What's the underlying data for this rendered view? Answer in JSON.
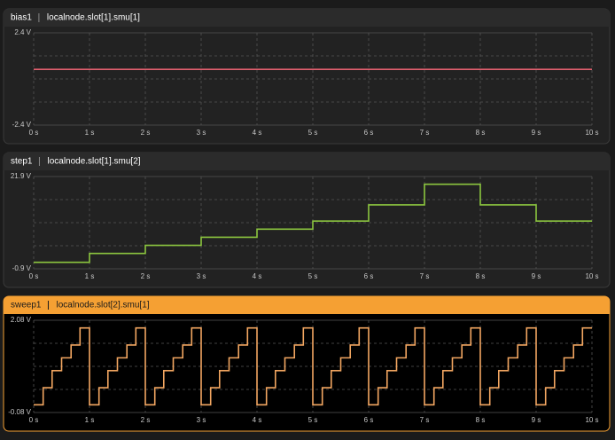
{
  "chart_data": [
    {
      "type": "line",
      "title": "bias1",
      "subtitle": "localnode.slot[1].smu[1]",
      "header_color": "#2b2b2b",
      "plot_color": "#222222",
      "border_color": "#3a3a3a",
      "grid": true,
      "xlim": [
        0,
        10
      ],
      "xticks": [
        {
          "value": 0,
          "label": "0 s"
        },
        {
          "value": 1,
          "label": "1 s"
        },
        {
          "value": 2,
          "label": "2 s"
        },
        {
          "value": 3,
          "label": "3 s"
        },
        {
          "value": 4,
          "label": "4 s"
        },
        {
          "value": 5,
          "label": "5 s"
        },
        {
          "value": 6,
          "label": "6 s"
        },
        {
          "value": 7,
          "label": "7 s"
        },
        {
          "value": 8,
          "label": "8 s"
        },
        {
          "value": 9,
          "label": "9 s"
        },
        {
          "value": 10,
          "label": "10 s"
        }
      ],
      "ylim": [
        -2.4,
        2.4
      ],
      "yticks": [
        {
          "value": -2.4,
          "label": "-2.4 V"
        },
        {
          "value": 2.4,
          "label": "2.4 V"
        }
      ],
      "series": [
        {
          "color": "#e0606e",
          "x": [
            0,
            10
          ],
          "values": [
            0.5,
            0.5
          ]
        }
      ]
    },
    {
      "type": "line",
      "title": "step1",
      "subtitle": "localnode.slot[1].smu[2]",
      "header_color": "#2b2b2b",
      "plot_color": "#222222",
      "border_color": "#3a3a3a",
      "grid": true,
      "xlim": [
        0,
        10
      ],
      "xticks": [
        {
          "value": 0,
          "label": "0 s"
        },
        {
          "value": 1,
          "label": "1 s"
        },
        {
          "value": 2,
          "label": "2 s"
        },
        {
          "value": 3,
          "label": "3 s"
        },
        {
          "value": 4,
          "label": "4 s"
        },
        {
          "value": 5,
          "label": "5 s"
        },
        {
          "value": 6,
          "label": "6 s"
        },
        {
          "value": 7,
          "label": "7 s"
        },
        {
          "value": 8,
          "label": "8 s"
        },
        {
          "value": 9,
          "label": "9 s"
        },
        {
          "value": 10,
          "label": "10 s"
        }
      ],
      "ylim": [
        -0.9,
        21.9
      ],
      "yticks": [
        {
          "value": -0.9,
          "label": "-0.9 V"
        },
        {
          "value": 21.9,
          "label": "21.9 V"
        }
      ],
      "series": [
        {
          "color": "#8cc63f",
          "x": [
            0,
            1,
            1,
            2,
            2,
            3,
            3,
            4,
            4,
            5,
            5,
            6,
            6,
            7,
            7,
            8,
            8,
            9,
            9,
            10
          ],
          "values": [
            0.7,
            0.7,
            2.9,
            2.9,
            4.9,
            4.9,
            6.9,
            6.9,
            8.9,
            8.9,
            10.9,
            10.9,
            14.9,
            14.9,
            20,
            20,
            14.9,
            14.9,
            10.9,
            10.9
          ]
        }
      ]
    },
    {
      "type": "line",
      "title": "sweep1",
      "subtitle": "localnode.slot[2].smu[1]",
      "header_color": "#f5a033",
      "plot_color": "#000000",
      "border_color": "#f5a033",
      "grid": true,
      "xlim": [
        0,
        10
      ],
      "xticks": [
        {
          "value": 0,
          "label": "0 s"
        },
        {
          "value": 1,
          "label": "1 s"
        },
        {
          "value": 2,
          "label": "2 s"
        },
        {
          "value": 3,
          "label": "3 s"
        },
        {
          "value": 4,
          "label": "4 s"
        },
        {
          "value": 5,
          "label": "5 s"
        },
        {
          "value": 6,
          "label": "6 s"
        },
        {
          "value": 7,
          "label": "7 s"
        },
        {
          "value": 8,
          "label": "8 s"
        },
        {
          "value": 9,
          "label": "9 s"
        },
        {
          "value": 10,
          "label": "10 s"
        }
      ],
      "ylim": [
        -0.08,
        2.08
      ],
      "yticks": [
        {
          "value": -0.08,
          "label": "-0.08 V"
        },
        {
          "value": 2.08,
          "label": "2.08 V"
        }
      ],
      "series": [
        {
          "color": "#f2a661",
          "x": [
            0,
            0.17,
            0.17,
            0.33,
            0.33,
            0.5,
            0.5,
            0.67,
            0.67,
            0.83,
            0.83,
            1,
            1,
            1.17,
            1.17,
            1.33,
            1.33,
            1.5,
            1.5,
            1.67,
            1.67,
            1.83,
            1.83,
            2,
            2,
            2.17,
            2.17,
            2.33,
            2.33,
            2.5,
            2.5,
            2.67,
            2.67,
            2.83,
            2.83,
            3,
            3,
            3.17,
            3.17,
            3.33,
            3.33,
            3.5,
            3.5,
            3.67,
            3.67,
            3.83,
            3.83,
            4,
            4,
            4.17,
            4.17,
            4.33,
            4.33,
            4.5,
            4.5,
            4.67,
            4.67,
            4.83,
            4.83,
            5,
            5,
            5.17,
            5.17,
            5.33,
            5.33,
            5.5,
            5.5,
            5.67,
            5.67,
            5.83,
            5.83,
            6,
            6,
            6.17,
            6.17,
            6.33,
            6.33,
            6.5,
            6.5,
            6.67,
            6.67,
            6.83,
            6.83,
            7,
            7,
            7.17,
            7.17,
            7.33,
            7.33,
            7.5,
            7.5,
            7.67,
            7.67,
            7.83,
            7.83,
            8,
            8,
            8.17,
            8.17,
            8.33,
            8.33,
            8.5,
            8.5,
            8.67,
            8.67,
            8.83,
            8.83,
            9,
            9,
            9.17,
            9.17,
            9.33,
            9.33,
            9.5,
            9.5,
            9.67,
            9.67,
            9.83,
            9.83,
            10
          ],
          "values": [
            0.1,
            0.1,
            0.5,
            0.5,
            0.9,
            0.9,
            1.2,
            1.2,
            1.5,
            1.5,
            1.9,
            1.9,
            0.1,
            0.1,
            0.5,
            0.5,
            0.9,
            0.9,
            1.2,
            1.2,
            1.5,
            1.5,
            1.9,
            1.9,
            0.1,
            0.1,
            0.5,
            0.5,
            0.9,
            0.9,
            1.2,
            1.2,
            1.5,
            1.5,
            1.9,
            1.9,
            0.1,
            0.1,
            0.5,
            0.5,
            0.9,
            0.9,
            1.2,
            1.2,
            1.5,
            1.5,
            1.9,
            1.9,
            0.1,
            0.1,
            0.5,
            0.5,
            0.9,
            0.9,
            1.2,
            1.2,
            1.5,
            1.5,
            1.9,
            1.9,
            0.1,
            0.1,
            0.5,
            0.5,
            0.9,
            0.9,
            1.2,
            1.2,
            1.5,
            1.5,
            1.9,
            1.9,
            0.1,
            0.1,
            0.5,
            0.5,
            0.9,
            0.9,
            1.2,
            1.2,
            1.5,
            1.5,
            1.9,
            1.9,
            0.1,
            0.1,
            0.5,
            0.5,
            0.9,
            0.9,
            1.2,
            1.2,
            1.5,
            1.5,
            1.9,
            1.9,
            0.1,
            0.1,
            0.5,
            0.5,
            0.9,
            0.9,
            1.2,
            1.2,
            1.5,
            1.5,
            1.9,
            1.9,
            0.1,
            0.1,
            0.5,
            0.5,
            0.9,
            0.9,
            1.2,
            1.2,
            1.5,
            1.5,
            1.9,
            1.9
          ]
        }
      ]
    }
  ]
}
